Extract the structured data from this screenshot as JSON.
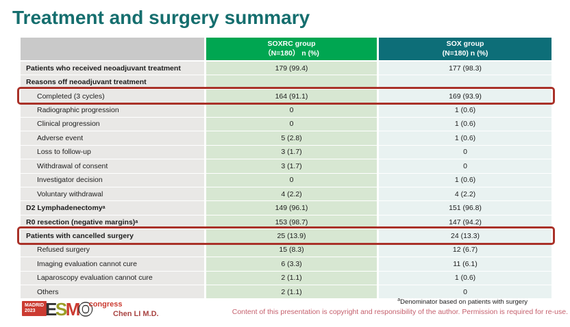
{
  "colors": {
    "title": "#156e6e",
    "header_gray": "#c9c9c9",
    "header_green": "#00a651",
    "header_teal": "#0d6e78",
    "row_label_bg": "#e9e8e6",
    "row_green_bg": "#d7e7d2",
    "row_teal_bg": "#e9f2f1",
    "highlight_red": "#a93128",
    "author_red": "#a94442",
    "copyright_pink": "#c5606d",
    "logo_red": "#cb3b31",
    "logo_olive": "#9a9d26",
    "logo_dark": "#333333"
  },
  "slide_title": "Treatment and surgery summary",
  "table": {
    "header": {
      "soxrc_line1": "SOXRC group",
      "soxrc_line2": "（N=180）  n (%)",
      "sox_line1": "SOX group",
      "sox_line2": "(N=180)  n (%)"
    },
    "rows": [
      {
        "label": "Patients who received neoadjuvant treatment",
        "bold": true,
        "indent": false,
        "soxrc": "179 (99.4)",
        "sox": "177 (98.3)",
        "highlight": false
      },
      {
        "label": "Reasons off neoadjuvant treatment",
        "bold": true,
        "indent": false,
        "soxrc": "",
        "sox": "",
        "highlight": false
      },
      {
        "label": "Completed (3 cycles)",
        "bold": false,
        "indent": true,
        "soxrc": "164 (91.1)",
        "sox": "169 (93.9)",
        "highlight": true
      },
      {
        "label": "Radiographic progression",
        "bold": false,
        "indent": true,
        "soxrc": "0",
        "sox": "1 (0.6)",
        "highlight": false
      },
      {
        "label": "Clinical progression",
        "bold": false,
        "indent": true,
        "soxrc": "0",
        "sox": "1 (0.6)",
        "highlight": false
      },
      {
        "label": "Adverse event",
        "bold": false,
        "indent": true,
        "soxrc": "5 (2.8)",
        "sox": "1 (0.6)",
        "highlight": false
      },
      {
        "label": "Loss to follow-up",
        "bold": false,
        "indent": true,
        "soxrc": "3 (1.7)",
        "sox": "0",
        "highlight": false
      },
      {
        "label": "Withdrawal of consent",
        "bold": false,
        "indent": true,
        "soxrc": "3 (1.7)",
        "sox": "0",
        "highlight": false
      },
      {
        "label": "Investigator decision",
        "bold": false,
        "indent": true,
        "soxrc": "0",
        "sox": "1 (0.6)",
        "highlight": false
      },
      {
        "label": "Voluntary withdrawal",
        "bold": false,
        "indent": true,
        "soxrc": "4 (2.2)",
        "sox": "4 (2.2)",
        "highlight": false
      },
      {
        "label": "D2 Lymphadenectomy",
        "sup": "a",
        "bold": true,
        "indent": false,
        "soxrc": "149 (96.1)",
        "sox": "151 (96.8)",
        "highlight": false
      },
      {
        "label": "R0 resection (negative margins)",
        "sup": "a",
        "bold": true,
        "indent": false,
        "soxrc": "153 (98.7)",
        "sox": "147 (94.2)",
        "highlight": false
      },
      {
        "label": "Patients with cancelled surgery",
        "bold": true,
        "indent": false,
        "soxrc": "25 (13.9)",
        "sox": "24 (13.3)",
        "highlight": true
      },
      {
        "label": "Refused surgery",
        "bold": false,
        "indent": true,
        "soxrc": "15 (8.3)",
        "sox": "12 (6.7)",
        "highlight": false
      },
      {
        "label": "Imaging evaluation cannot cure",
        "bold": false,
        "indent": true,
        "soxrc": "6 (3.3)",
        "sox": "11 (6.1)",
        "highlight": false
      },
      {
        "label": "Laparoscopy evaluation cannot cure",
        "bold": false,
        "indent": true,
        "soxrc": "2 (1.1)",
        "sox": "1 (0.6)",
        "highlight": false
      },
      {
        "label": "Others",
        "bold": false,
        "indent": true,
        "soxrc": "2 (1.1)",
        "sox": "0",
        "highlight": false
      }
    ]
  },
  "footer": {
    "footnote_sup": "a",
    "footnote_text": "Denominator based on patients with surgery",
    "copyright": "Content of this presentation is copyright and responsibility of the author. Permission is required for re-use.",
    "author": "Chen LI M.D.",
    "logo": {
      "badge_line1": "MADRID",
      "badge_line2": "2023",
      "letter_e": "E",
      "letter_s": "S",
      "letter_m": "M",
      "letter_o": "O",
      "congress": "congress"
    }
  }
}
